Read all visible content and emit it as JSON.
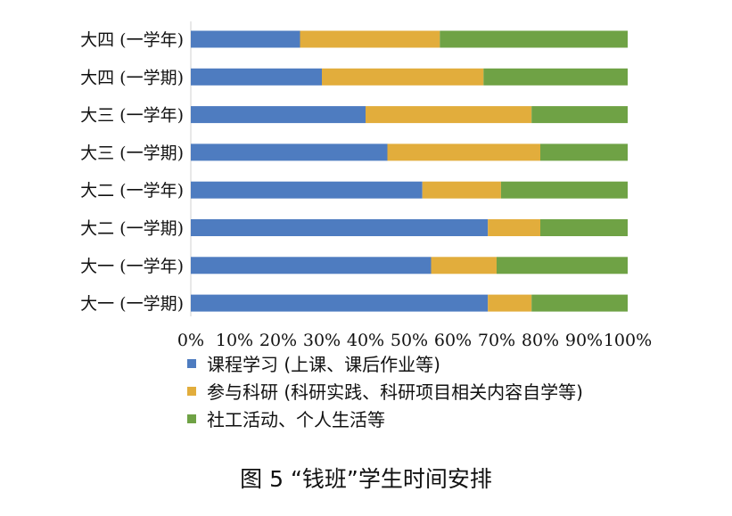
{
  "chart_data": {
    "type": "bar",
    "orientation": "horizontal",
    "stacked": "percent",
    "categories": [
      "大四 (一学年)",
      "大四 (一学期)",
      "大三 (一学年)",
      "大三 (一学期)",
      "大二 (一学年)",
      "大二 (一学期)",
      "大一 (一学年)",
      "大一 (一学期)"
    ],
    "series": [
      {
        "name": "课程学习 (上课、课后作业等)",
        "color": "#4e7cc0",
        "values": [
          25,
          30,
          40,
          45,
          53,
          68,
          55,
          68
        ]
      },
      {
        "name": "参与科研 (科研实践、科研项目相关内容自学等)",
        "color": "#e2ad3c",
        "values": [
          32,
          37,
          38,
          35,
          18,
          12,
          15,
          10
        ]
      },
      {
        "name": "社工活动、个人生活等",
        "color": "#6fa245",
        "values": [
          43,
          33,
          22,
          20,
          29,
          20,
          30,
          22
        ]
      }
    ],
    "x_ticks": [
      "0%",
      "10%",
      "20%",
      "30%",
      "40%",
      "50%",
      "60%",
      "70%",
      "80%",
      "90%",
      "100%"
    ],
    "xlim": [
      0,
      100
    ],
    "grid": false,
    "legend_position": "bottom-left"
  },
  "caption": "图 5 “钱班”学生时间安排"
}
